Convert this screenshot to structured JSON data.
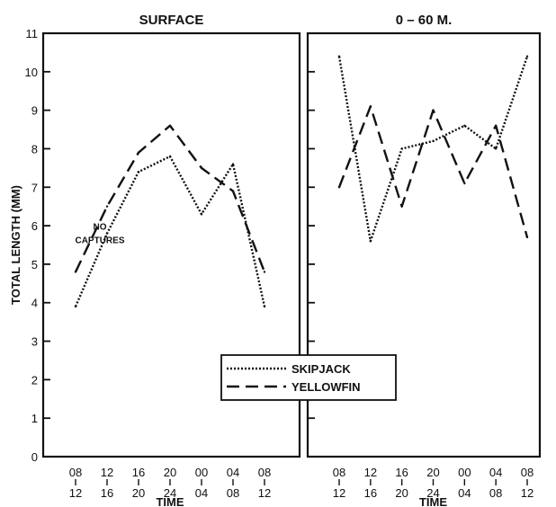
{
  "chart_data": [
    {
      "type": "line",
      "title": "SURFACE",
      "xlabel": "TIME",
      "ylabel": "TOTAL LENGTH (MM)",
      "ylim": [
        0,
        11
      ],
      "yticks": [
        0,
        1,
        2,
        3,
        4,
        5,
        6,
        7,
        8,
        9,
        10,
        11
      ],
      "categories": [
        [
          "08",
          "12"
        ],
        [
          "12",
          "16"
        ],
        [
          "16",
          "20"
        ],
        [
          "20",
          "24"
        ],
        [
          "00",
          "04"
        ],
        [
          "04",
          "08"
        ],
        [
          "08",
          "12"
        ]
      ],
      "series": [
        {
          "name": "SKIPJACK",
          "style": "dotted",
          "values": [
            3.9,
            5.8,
            7.4,
            7.8,
            6.3,
            7.6,
            3.9
          ]
        },
        {
          "name": "YELLOWFIN",
          "style": "dashed",
          "values": [
            4.8,
            6.5,
            7.9,
            8.6,
            7.5,
            6.9,
            4.8
          ]
        }
      ],
      "annotations": [
        {
          "text": "NO",
          "category_index": 1,
          "y": 5.9
        },
        {
          "text": "CAPTURES",
          "category_index": 1,
          "y": 5.55
        }
      ],
      "grid": false
    },
    {
      "type": "line",
      "title": "0 – 60 M.",
      "xlabel": "TIME",
      "ylabel": "",
      "ylim": [
        0,
        11
      ],
      "yticks": [
        0,
        1,
        2,
        3,
        4,
        5,
        6,
        7,
        8,
        9,
        10,
        11
      ],
      "categories": [
        [
          "08",
          "12"
        ],
        [
          "12",
          "16"
        ],
        [
          "16",
          "20"
        ],
        [
          "20",
          "24"
        ],
        [
          "00",
          "04"
        ],
        [
          "04",
          "08"
        ],
        [
          "08",
          "12"
        ]
      ],
      "series": [
        {
          "name": "SKIPJACK",
          "style": "dotted",
          "values": [
            10.4,
            5.6,
            8.0,
            8.2,
            8.6,
            8.0,
            10.4
          ]
        },
        {
          "name": "YELLOWFIN",
          "style": "dashed",
          "values": [
            7.0,
            9.1,
            6.5,
            9.0,
            7.1,
            8.6,
            5.7
          ]
        }
      ],
      "grid": false
    }
  ],
  "legend": {
    "placement": "bottom-center",
    "entries": [
      {
        "label": "SKIPJACK",
        "style": "dotted"
      },
      {
        "label": "YELLOWFIN",
        "style": "dashed"
      }
    ]
  },
  "colors": {
    "line": "#111111",
    "background": "#ffffff"
  }
}
